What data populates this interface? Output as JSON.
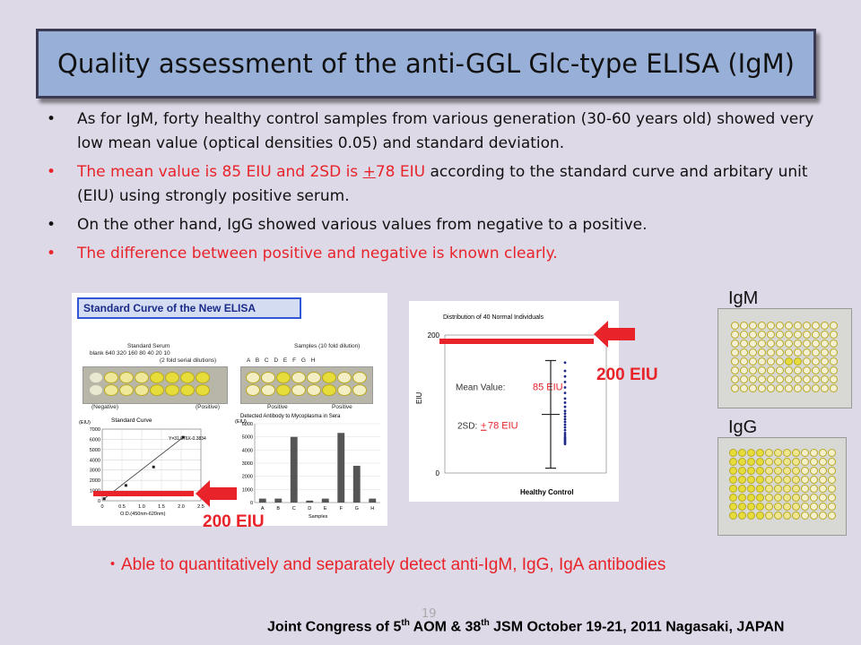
{
  "slide": {
    "title": "Quality assessment of the anti-GGL Glc-type ELISA (IgM)",
    "page_number": "19"
  },
  "bullets": [
    {
      "text": "As for IgM, forty healthy control samples from various generation (30-60 years old) showed very low mean value (optical densities 0.05) and standard deviation."
    },
    {
      "red_text": "The mean value is 85 EIU and 2SD is ",
      "red_plus": "+",
      "red_text2": "78 EIU",
      "black_text": " according to the standard curve and arbitary unit (EIU) using strongly positive serum."
    },
    {
      "text": "On the other hand, IgG showed various values from negative to a positive."
    },
    {
      "text": "The difference between positive and negative is known clearly."
    }
  ],
  "bullet_symbol": "•",
  "left_figure": {
    "header": "Standard Curve of the New ELISA",
    "standard_serum_title": "Standard Serum",
    "standard_serum_dilutions": "blank  640   320   160   80    40    20    10",
    "serial_note": "(2 fold serial dilutions)",
    "negative_label": "(Negative)",
    "positive_label": "(Positive)",
    "samples_title": "Samples (10 fold dilution)",
    "sample_letters": "A  B  C  D  E  F  G  H",
    "positive_1": "Positive",
    "positive_2": "Positive",
    "curve_title": "Standard Curve",
    "curve_eiu": "(EIU)",
    "equation": "Y=31.076X-0.3834",
    "curve_xlabel": "O.D.(450nm-620nm)",
    "bar_title": "Detected Antibody to Mycoplasma in Sera",
    "bar_eiu": "(EIU)",
    "bar_xlabel": "Samples"
  },
  "chart_data": [
    {
      "type": "scatter",
      "title": "Standard Curve",
      "ylabel": "(EIU)",
      "xlabel": "O.D.(450nm-620nm)",
      "xlim": [
        0,
        2.5
      ],
      "ylim": [
        0,
        7000
      ],
      "x_ticks": [
        "0",
        "0.5",
        "1.0",
        "1.5",
        "2.0",
        "2.5"
      ],
      "y_ticks": [
        "0",
        "1000",
        "2000",
        "3000",
        "4000",
        "5000",
        "6000",
        "7000"
      ],
      "points": [
        [
          0.05,
          200
        ],
        [
          0.3,
          600
        ],
        [
          0.6,
          1500
        ],
        [
          1.3,
          3300
        ],
        [
          2.05,
          6200
        ]
      ],
      "annotation": "Y=31.076X-0.3834"
    },
    {
      "type": "bar",
      "title": "Detected Antibody to Mycoplasma in Sera",
      "ylabel": "(EIU)",
      "xlabel": "Samples",
      "categories": [
        "A",
        "B",
        "C",
        "D",
        "E",
        "F",
        "G",
        "H"
      ],
      "values": [
        300,
        300,
        5000,
        150,
        300,
        5300,
        2800,
        300
      ],
      "ylim": [
        0,
        6000
      ],
      "y_ticks": [
        "0",
        "1000",
        "2000",
        "3000",
        "4000",
        "5000",
        "6000"
      ]
    },
    {
      "type": "scatter",
      "title": "Distribution of 40 Normal Individuals",
      "ylabel": "EIU",
      "xlabel": "Healthy Control",
      "ylim": [
        0,
        200
      ],
      "y_ticks": [
        "200",
        "0"
      ],
      "mean_label": "Mean Value:",
      "mean_value": "85 EIU",
      "sd_label": "2SD:",
      "sd_plus": "+",
      "sd_value": " 78 EIU",
      "points_y": [
        160,
        148,
        140,
        132,
        124,
        116,
        108,
        102,
        96,
        90,
        86,
        82,
        78,
        74,
        70,
        66,
        62,
        58,
        55,
        52,
        50,
        48,
        46,
        44,
        42
      ]
    }
  ],
  "annotations": {
    "eiu_200_left": "200 EIU",
    "eiu_200_right": "200 EIU",
    "igm_label": "IgM",
    "igg_label": "IgG"
  },
  "note": "・Able to quantitatively and separately detect anti-IgM, IgG, IgA antibodies",
  "footer": {
    "pre": "Joint Congress of 5",
    "sup1": "th",
    "mid": " AOM & 38",
    "sup2": "th",
    "post": " JSM October 19-21, 2011 Nagasaki, JAPAN"
  },
  "colors": {
    "accent_red": "#e8232a",
    "title_bg": "#98b0d8",
    "background": "#ded9e7",
    "well_yellow": "#e6dc3a",
    "dot_blue": "#1f2a8a"
  }
}
